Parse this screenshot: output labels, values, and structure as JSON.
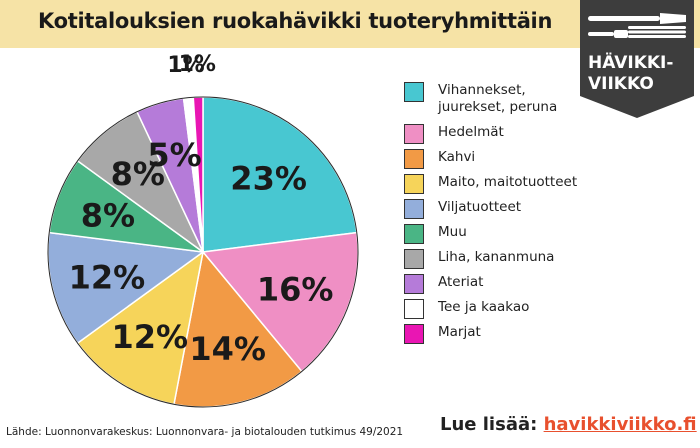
{
  "title": "Kotitalouksien ruokahävikki tuoteryhmittäin",
  "brand": {
    "line1": "HÄVIKKI-",
    "line2": "VIIKKO",
    "icon": "fork-knife-icon"
  },
  "chart_data": {
    "type": "pie",
    "title": "Kotitalouksien ruokahävikki tuoteryhmittäin",
    "unit": "%",
    "legend_position": "right",
    "slices": [
      {
        "name": "Vihannekset, juurekset, peruna",
        "legend": [
          "Vihannekset,",
          "juurekset, peruna"
        ],
        "value": 23,
        "label": "23%",
        "color": "#48c7d1"
      },
      {
        "name": "Hedelmät",
        "legend": [
          "Hedelmät"
        ],
        "value": 16,
        "label": "16%",
        "color": "#ef8fc4"
      },
      {
        "name": "Kahvi",
        "legend": [
          "Kahvi"
        ],
        "value": 14,
        "label": "14%",
        "color": "#f29a45"
      },
      {
        "name": "Maito, maitotuotteet",
        "legend": [
          "Maito, maitotuotteet"
        ],
        "value": 12,
        "label": "12%",
        "color": "#f6d45a"
      },
      {
        "name": "Viljatuotteet",
        "legend": [
          "Viljatuotteet"
        ],
        "value": 12,
        "label": "12%",
        "color": "#93aedb"
      },
      {
        "name": "Muu",
        "legend": [
          "Muu"
        ],
        "value": 8,
        "label": "8%",
        "color": "#4ab585"
      },
      {
        "name": "Liha, kananmuna",
        "legend": [
          "Liha, kananmuna"
        ],
        "value": 8,
        "label": "8%",
        "color": "#a8a8a8"
      },
      {
        "name": "Ateriat",
        "legend": [
          "Ateriat"
        ],
        "value": 5,
        "label": "5%",
        "color": "#b57bd9"
      },
      {
        "name": "Tee ja kaakao",
        "legend": [
          "Tee ja kaakao"
        ],
        "value": 1,
        "label": "1%",
        "color": "#ffffff"
      },
      {
        "name": "Marjat",
        "legend": [
          "Marjat"
        ],
        "value": 1,
        "label": "1%",
        "color": "#e916b3"
      }
    ]
  },
  "source": "Lähde: Luonnonvarakeskus: Luonnonvara- ja biotalouden tutkimus 49/2021",
  "more": {
    "label": "Lue lisää:",
    "link": "havikkiviikko.fi"
  }
}
